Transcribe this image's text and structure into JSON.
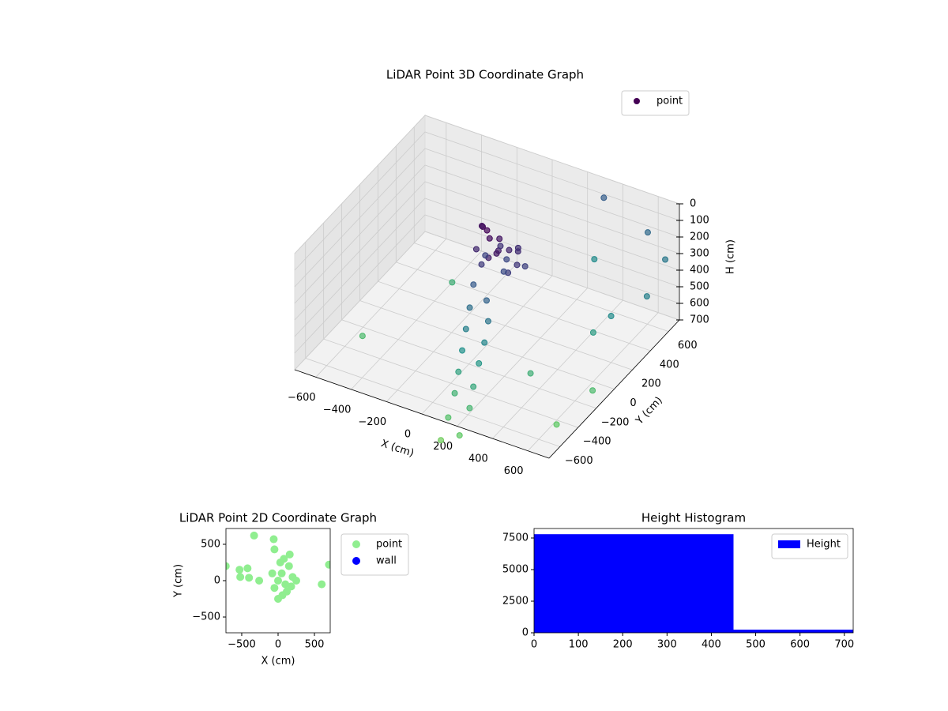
{
  "chart_data": [
    {
      "type": "scatter3d",
      "title": "LiDAR Point 3D Coordinate Graph",
      "xlabel": "X (cm)",
      "ylabel": "Y (cm)",
      "zlabel": "H (cm)",
      "xlim": [
        -720,
        720
      ],
      "ylim": [
        -720,
        720
      ],
      "zlim": [
        700,
        0
      ],
      "xticks": [
        {
          "value": -600,
          "label": "−600"
        },
        {
          "value": -400,
          "label": "−400"
        },
        {
          "value": -200,
          "label": "−200"
        },
        0,
        200,
        400,
        600
      ],
      "yticks": [
        {
          "value": -600,
          "label": "−600"
        },
        {
          "value": -400,
          "label": "−400"
        },
        {
          "value": -200,
          "label": "−200"
        },
        0,
        200,
        400,
        600
      ],
      "zticks": [
        0,
        100,
        200,
        300,
        400,
        500,
        600,
        700
      ],
      "colormap": "viridis",
      "legend": "upper right",
      "series": [
        {
          "name": "point",
          "color": "#440154",
          "x": [
            0,
            30,
            60,
            -40,
            90,
            120,
            150,
            100,
            -30,
            40,
            180,
            160,
            70,
            -60,
            130,
            200,
            20,
            -20,
            110,
            80,
            0,
            100,
            30,
            150,
            60,
            180,
            90,
            200,
            120,
            230,
            150,
            260,
            180,
            280,
            200,
            500,
            650,
            700,
            200,
            600,
            -500,
            -300,
            700,
            650,
            400,
            550,
            300
          ],
          "y": [
            0,
            -30,
            20,
            30,
            -50,
            10,
            50,
            -90,
            -60,
            70,
            -20,
            -80,
            -120,
            60,
            90,
            30,
            -100,
            20,
            -30,
            60,
            -150,
            -200,
            -250,
            -280,
            -350,
            -380,
            -450,
            -480,
            -550,
            -600,
            -650,
            -700,
            -780,
            -850,
            -900,
            800,
            700,
            400,
            900,
            200,
            -400,
            200,
            -200,
            -500,
            -300,
            100,
            600
          ],
          "z": [
            10,
            30,
            50,
            20,
            70,
            90,
            110,
            60,
            100,
            130,
            140,
            160,
            80,
            40,
            120,
            170,
            150,
            180,
            200,
            190,
            250,
            280,
            320,
            340,
            380,
            400,
            440,
            460,
            500,
            520,
            560,
            580,
            620,
            650,
            680,
            300,
            350,
            380,
            260,
            420,
            600,
            550,
            600,
            650,
            550,
            480,
            420
          ]
        }
      ]
    },
    {
      "type": "scatter",
      "title": "LiDAR Point 2D Coordinate Graph",
      "xlabel": "X (cm)",
      "ylabel": "Y (cm)",
      "xlim": [
        -717,
        717
      ],
      "ylim": [
        -717,
        717
      ],
      "xticks": [
        {
          "value": -500,
          "label": "−500"
        },
        0,
        500
      ],
      "yticks": [
        {
          "value": -500,
          "label": "−500"
        },
        0,
        500
      ],
      "legend": "outside right",
      "series": [
        {
          "name": "point",
          "color": "#90ee90",
          "x": [
            0,
            50,
            100,
            150,
            200,
            -50,
            0,
            80,
            120,
            180,
            -80,
            30,
            250,
            60,
            -330,
            -60,
            -50,
            -720,
            -530,
            -520,
            -400,
            -420,
            -260,
            600,
            700,
            160
          ],
          "y": [
            0,
            100,
            -50,
            200,
            50,
            -100,
            -250,
            300,
            -150,
            -80,
            100,
            250,
            0,
            -200,
            620,
            570,
            430,
            200,
            150,
            50,
            40,
            170,
            0,
            -50,
            220,
            360
          ]
        },
        {
          "name": "wall",
          "color": "#0000ff",
          "x": [],
          "y": []
        }
      ]
    },
    {
      "type": "histogram",
      "title": "Height Histogram",
      "name": "Height",
      "color": "#0000ff",
      "bins": [
        0,
        450,
        720
      ],
      "counts": [
        7800,
        250
      ],
      "xlim": [
        0,
        720
      ],
      "ylim": [
        0,
        8250
      ],
      "xticks": [
        0,
        100,
        200,
        300,
        400,
        500,
        600,
        700
      ],
      "yticks": [
        0,
        2500,
        5000,
        7500
      ],
      "legend": "upper right"
    }
  ]
}
